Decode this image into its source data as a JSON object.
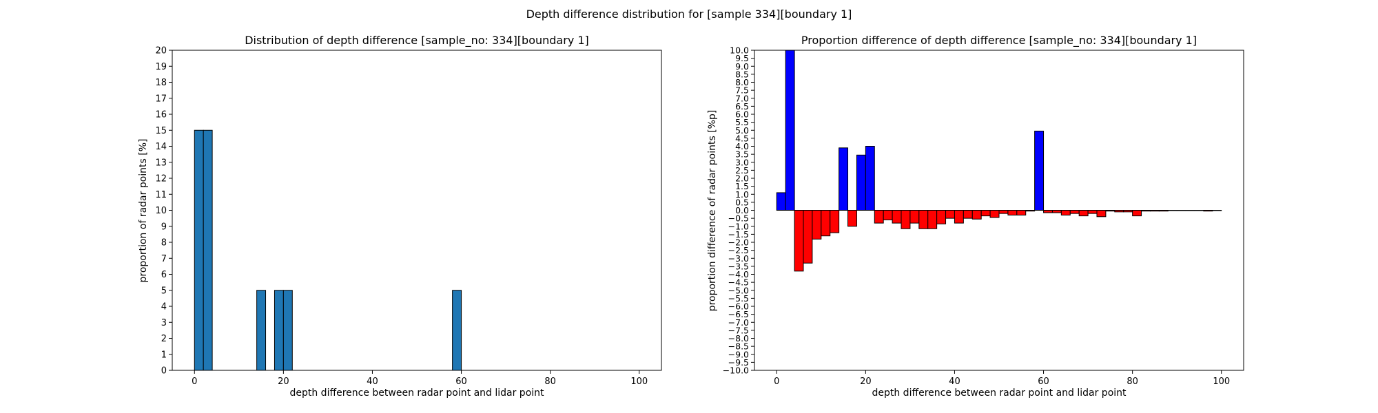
{
  "figure": {
    "suptitle": "Depth difference distribution for [sample 334][boundary 1]"
  },
  "colors": {
    "left_bar": "#1f77b4",
    "positive": "#0000ff",
    "negative": "#ff0000",
    "edge": "#000000"
  },
  "chart_data": [
    {
      "type": "bar",
      "title": "Distribution of depth difference [sample_no: 334][boundary 1]",
      "xlabel": "depth difference between radar point and lidar point",
      "ylabel": "proportion of radar points [%]",
      "xlim": [
        -5,
        105
      ],
      "ylim": [
        0,
        20
      ],
      "x_ticks": [
        0,
        20,
        40,
        60,
        80,
        100
      ],
      "y_ticks": [
        0,
        1,
        2,
        3,
        4,
        5,
        6,
        7,
        8,
        9,
        10,
        11,
        12,
        13,
        14,
        15,
        16,
        17,
        18,
        19,
        20
      ],
      "bin_width": 2,
      "bars": [
        {
          "x": 1,
          "value": 15
        },
        {
          "x": 3,
          "value": 15
        },
        {
          "x": 15,
          "value": 5
        },
        {
          "x": 19,
          "value": 5
        },
        {
          "x": 21,
          "value": 5
        },
        {
          "x": 59,
          "value": 5
        }
      ]
    },
    {
      "type": "bar",
      "title": "Proportion difference of depth difference [sample_no: 334][boundary 1]",
      "xlabel": "depth difference between radar point and lidar point",
      "ylabel": "proportion difference of radar points [%p]",
      "xlim": [
        -5,
        105
      ],
      "ylim": [
        -10,
        10
      ],
      "x_ticks": [
        0,
        20,
        40,
        60,
        80,
        100
      ],
      "y_ticks": [
        -10,
        -9.5,
        -9,
        -8.5,
        -8,
        -7.5,
        -7,
        -6.5,
        -6,
        -5.5,
        -5,
        -4.5,
        -4,
        -3.5,
        -3,
        -2.5,
        -2,
        -1.5,
        -1,
        -0.5,
        0,
        0.5,
        1,
        1.5,
        2,
        2.5,
        3,
        3.5,
        4,
        4.5,
        5,
        5.5,
        6,
        6.5,
        7,
        7.5,
        8,
        8.5,
        9,
        9.5,
        10
      ],
      "bin_width": 2,
      "bars": [
        {
          "x": 1,
          "value": 1.1
        },
        {
          "x": 3,
          "value": 10.0
        },
        {
          "x": 5,
          "value": -3.8
        },
        {
          "x": 7,
          "value": -3.3
        },
        {
          "x": 9,
          "value": -1.8
        },
        {
          "x": 11,
          "value": -1.6
        },
        {
          "x": 13,
          "value": -1.4
        },
        {
          "x": 15,
          "value": 3.9
        },
        {
          "x": 17,
          "value": -1.0
        },
        {
          "x": 19,
          "value": 3.45
        },
        {
          "x": 21,
          "value": 4.0
        },
        {
          "x": 23,
          "value": -0.8
        },
        {
          "x": 25,
          "value": -0.6
        },
        {
          "x": 27,
          "value": -0.8
        },
        {
          "x": 29,
          "value": -1.15
        },
        {
          "x": 31,
          "value": -0.8
        },
        {
          "x": 33,
          "value": -1.15
        },
        {
          "x": 35,
          "value": -1.15
        },
        {
          "x": 37,
          "value": -0.85
        },
        {
          "x": 39,
          "value": -0.5
        },
        {
          "x": 41,
          "value": -0.8
        },
        {
          "x": 43,
          "value": -0.5
        },
        {
          "x": 45,
          "value": -0.55
        },
        {
          "x": 47,
          "value": -0.35
        },
        {
          "x": 49,
          "value": -0.45
        },
        {
          "x": 51,
          "value": -0.2
        },
        {
          "x": 53,
          "value": -0.3
        },
        {
          "x": 55,
          "value": -0.3
        },
        {
          "x": 57,
          "value": -0.05
        },
        {
          "x": 59,
          "value": 4.95
        },
        {
          "x": 61,
          "value": -0.15
        },
        {
          "x": 63,
          "value": -0.15
        },
        {
          "x": 65,
          "value": -0.3
        },
        {
          "x": 67,
          "value": -0.2
        },
        {
          "x": 69,
          "value": -0.35
        },
        {
          "x": 71,
          "value": -0.2
        },
        {
          "x": 73,
          "value": -0.4
        },
        {
          "x": 75,
          "value": -0.05
        },
        {
          "x": 77,
          "value": -0.1
        },
        {
          "x": 79,
          "value": -0.1
        },
        {
          "x": 81,
          "value": -0.35
        },
        {
          "x": 83,
          "value": -0.05
        },
        {
          "x": 85,
          "value": -0.05
        },
        {
          "x": 87,
          "value": -0.05
        },
        {
          "x": 89,
          "value": -0.02
        },
        {
          "x": 91,
          "value": -0.02
        },
        {
          "x": 93,
          "value": -0.02
        },
        {
          "x": 95,
          "value": -0.02
        },
        {
          "x": 97,
          "value": -0.05
        },
        {
          "x": 99,
          "value": -0.02
        }
      ]
    }
  ]
}
